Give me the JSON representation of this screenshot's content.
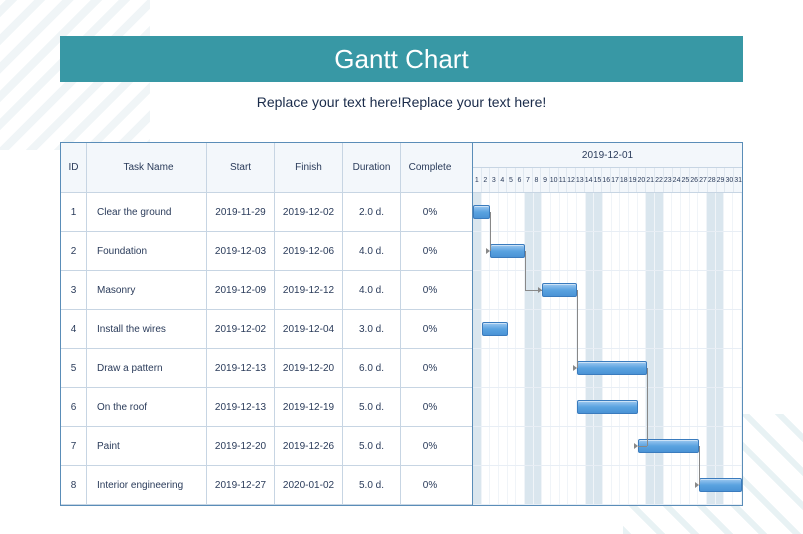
{
  "title": "Gantt Chart",
  "subtitle": "Replace your text here!Replace your text here!",
  "colors": {
    "title_bg": "#3898a5",
    "title_fg": "#ffffff",
    "border": "#5a8db8",
    "bar_grad_top": "#9cc8f0",
    "bar_grad_mid": "#5aa3e0",
    "bar_border": "#3a7bbd",
    "weekend_bg": "#dae6ee",
    "header_bg": "#f3f7fb"
  },
  "columns": {
    "id": "ID",
    "name": "Task Name",
    "start": "Start",
    "finish": "Finish",
    "duration": "Duration",
    "complete": "Complete"
  },
  "timeline": {
    "month_label": "2019-12-01",
    "days": 31,
    "weekend_days": [
      1,
      7,
      8,
      14,
      15,
      21,
      22,
      28,
      29
    ]
  },
  "tasks": [
    {
      "id": "1",
      "name": "Clear the ground",
      "start": "2019-11-29",
      "finish": "2019-12-02",
      "duration": "2.0 d.",
      "complete": "0%",
      "bar_start": 1,
      "bar_end": 2,
      "links_to": 1
    },
    {
      "id": "2",
      "name": "Foundation",
      "start": "2019-12-03",
      "finish": "2019-12-06",
      "duration": "4.0 d.",
      "complete": "0%",
      "bar_start": 3,
      "bar_end": 6,
      "links_to": 2
    },
    {
      "id": "3",
      "name": "Masonry",
      "start": "2019-12-09",
      "finish": "2019-12-12",
      "duration": "4.0 d.",
      "complete": "0%",
      "bar_start": 9,
      "bar_end": 12,
      "links_to": 4
    },
    {
      "id": "4",
      "name": "Install the wires",
      "start": "2019-12-02",
      "finish": "2019-12-04",
      "duration": "3.0 d.",
      "complete": "0%",
      "bar_start": 2,
      "bar_end": 4
    },
    {
      "id": "5",
      "name": "Draw a pattern",
      "start": "2019-12-13",
      "finish": "2019-12-20",
      "duration": "6.0 d.",
      "complete": "0%",
      "bar_start": 13,
      "bar_end": 20,
      "links_to": 6
    },
    {
      "id": "6",
      "name": "On the roof",
      "start": "2019-12-13",
      "finish": "2019-12-19",
      "duration": "5.0 d.",
      "complete": "0%",
      "bar_start": 13,
      "bar_end": 19
    },
    {
      "id": "7",
      "name": "Paint",
      "start": "2019-12-20",
      "finish": "2019-12-26",
      "duration": "5.0 d.",
      "complete": "0%",
      "bar_start": 20,
      "bar_end": 26,
      "links_to": 7
    },
    {
      "id": "8",
      "name": "Interior engineering",
      "start": "2019-12-27",
      "finish": "2020-01-02",
      "duration": "5.0 d.",
      "complete": "0%",
      "bar_start": 27,
      "bar_end": 31
    }
  ]
}
